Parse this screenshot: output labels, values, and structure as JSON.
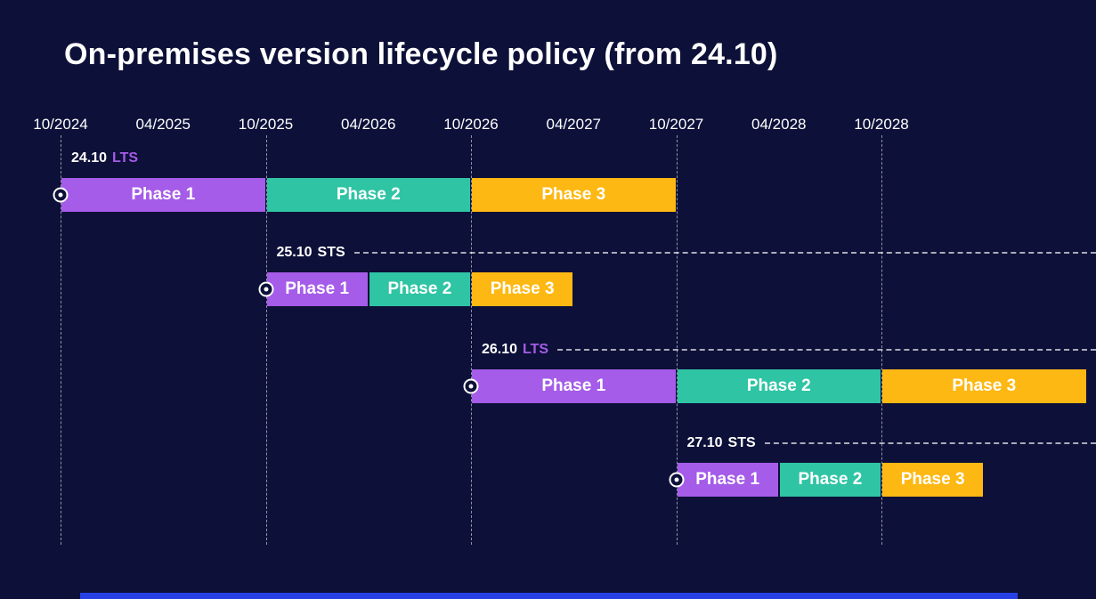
{
  "title": "On-premises version lifecycle policy (from 24.10)",
  "colors": {
    "background": "#0d1038",
    "purple": "#a55ce8",
    "teal": "#2fc4a4",
    "yellow": "#fdb813",
    "lts_tag": "#a55ce8",
    "sts_tag": "#ffffff",
    "accent_blue": "#2640e6",
    "gridline": "rgba(255,255,255,0.55)"
  },
  "chart_data": {
    "type": "gantt",
    "title": "On-premises version lifecycle policy (from 24.10)",
    "x_axis": {
      "ticks": [
        "10/2024",
        "04/2025",
        "10/2025",
        "04/2026",
        "10/2026",
        "04/2027",
        "10/2027",
        "04/2028",
        "10/2028"
      ],
      "unit": "MM/YYYY",
      "gridlines_at": [
        "10/2024",
        "10/2025",
        "10/2026",
        "10/2027",
        "10/2028"
      ]
    },
    "legend": "none",
    "series": [
      {
        "name": "24.10",
        "tag": "LTS",
        "dashed_leader": false,
        "phases": [
          {
            "label": "Phase 1",
            "start": "10/2024",
            "end": "10/2025",
            "color": "purple"
          },
          {
            "label": "Phase 2",
            "start": "10/2025",
            "end": "10/2026",
            "color": "teal"
          },
          {
            "label": "Phase 3",
            "start": "10/2026",
            "end": "10/2027",
            "color": "yellow"
          }
        ]
      },
      {
        "name": "25.10",
        "tag": "STS",
        "dashed_leader": true,
        "phases": [
          {
            "label": "Phase 1",
            "start": "10/2025",
            "end": "04/2026",
            "color": "purple"
          },
          {
            "label": "Phase 2",
            "start": "04/2026",
            "end": "10/2026",
            "color": "teal"
          },
          {
            "label": "Phase 3",
            "start": "10/2026",
            "end": "04/2027",
            "color": "yellow"
          }
        ]
      },
      {
        "name": "26.10",
        "tag": "LTS",
        "dashed_leader": true,
        "phases": [
          {
            "label": "Phase 1",
            "start": "10/2026",
            "end": "10/2027",
            "color": "purple"
          },
          {
            "label": "Phase 2",
            "start": "10/2027",
            "end": "10/2028",
            "color": "teal"
          },
          {
            "label": "Phase 3",
            "start": "10/2028",
            "end": "10/2029",
            "color": "yellow"
          }
        ]
      },
      {
        "name": "27.10",
        "tag": "STS",
        "dashed_leader": true,
        "phases": [
          {
            "label": "Phase 1",
            "start": "10/2027",
            "end": "04/2028",
            "color": "purple"
          },
          {
            "label": "Phase 2",
            "start": "04/2028",
            "end": "10/2028",
            "color": "teal"
          },
          {
            "label": "Phase 3",
            "start": "10/2028",
            "end": "04/2029",
            "color": "yellow"
          }
        ]
      }
    ]
  }
}
